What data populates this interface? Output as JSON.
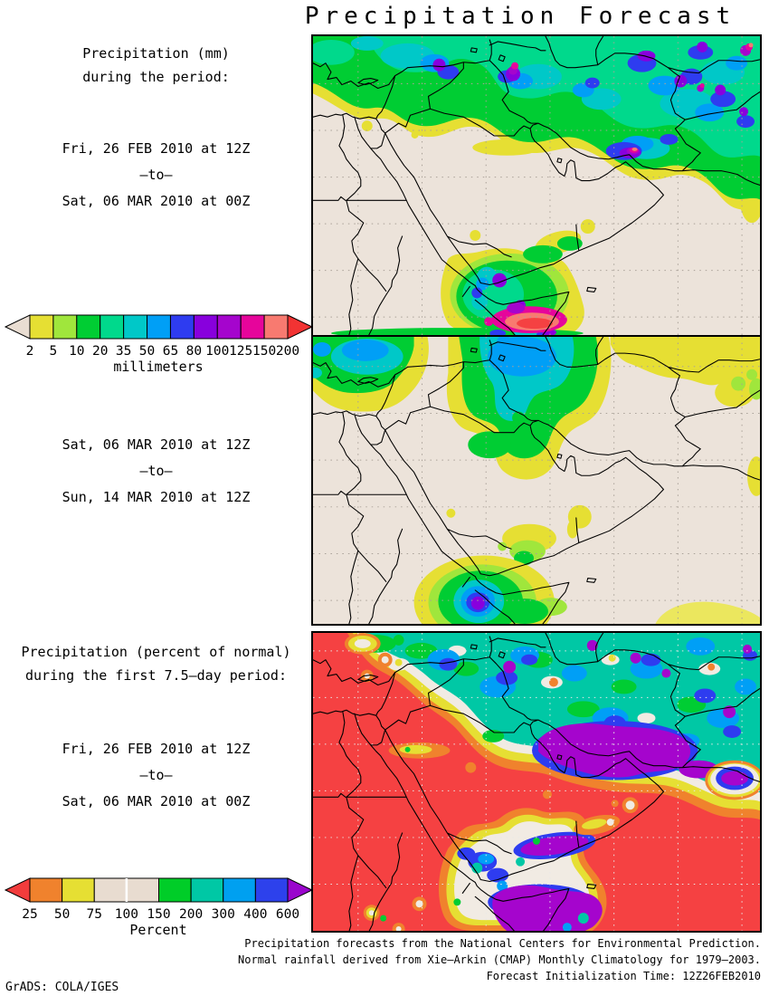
{
  "title": "Precipitation Forecast",
  "panel_mm": {
    "heading": [
      "Precipitation (mm)",
      "during the period:"
    ],
    "period1": {
      "start": "Fri, 26 FEB 2010 at 12Z",
      "sep": "–to–",
      "end": "Sat, 06 MAR 2010 at 00Z"
    },
    "period2": {
      "start": "Sat, 06 MAR 2010 at 12Z",
      "sep": "–to–",
      "end": "Sun, 14 MAR 2010 at 12Z"
    }
  },
  "panel_pct": {
    "heading": [
      "Precipitation (percent of normal)",
      "during the first 7.5–day period:"
    ],
    "period": {
      "start": "Fri, 26 FEB 2010 at 12Z",
      "sep": "–to–",
      "end": "Sat, 06 MAR 2010 at 00Z"
    }
  },
  "legend_mm": {
    "unit_label": "millimeters",
    "tick_labels": [
      "2",
      "5",
      "10",
      "20",
      "35",
      "50",
      "65",
      "80",
      "100",
      "125",
      "150",
      "200"
    ],
    "segment_colors": [
      "#e6df33",
      "#a0e63c",
      "#00cd33",
      "#00d98c",
      "#00c8c8",
      "#009ff6",
      "#2e3cf0",
      "#8800dd",
      "#a505cd",
      "#e6059b",
      "#f87a70"
    ],
    "left_arrow_color": "#e9ddd2",
    "right_arrow_color": "#f23333"
  },
  "legend_pct": {
    "unit_label": "Percent",
    "tick_labels": [
      "25",
      "50",
      "75",
      "100",
      "150",
      "200",
      "300",
      "400",
      "600"
    ],
    "segment_colors": [
      "#f0822d",
      "#e6df33",
      "#e8dcd0",
      "#e8dcd0",
      "#00cd28",
      "#00c8a5",
      "#00a0f0",
      "#2d41ec"
    ],
    "left_arrow_color": "#f23c3c",
    "right_arrow_color": "#9a05cd",
    "divider_at_tick_index": 3
  },
  "footer": {
    "line1": "Precipitation forecasts from the National Centers for Environmental Prediction.",
    "line2": "Normal rainfall derived from Xie–Arkin (CMAP) Monthly Climatology for 1979–2003.",
    "line3": "Forecast Initialization Time: 12Z26FEB2010",
    "credit": "GrADS: COLA/IGES"
  },
  "map_style": {
    "land": "#ece3da",
    "grid_dots": "#a9a198",
    "grid_dots_on_red": "#e8e8e8",
    "outline": "#000000"
  }
}
